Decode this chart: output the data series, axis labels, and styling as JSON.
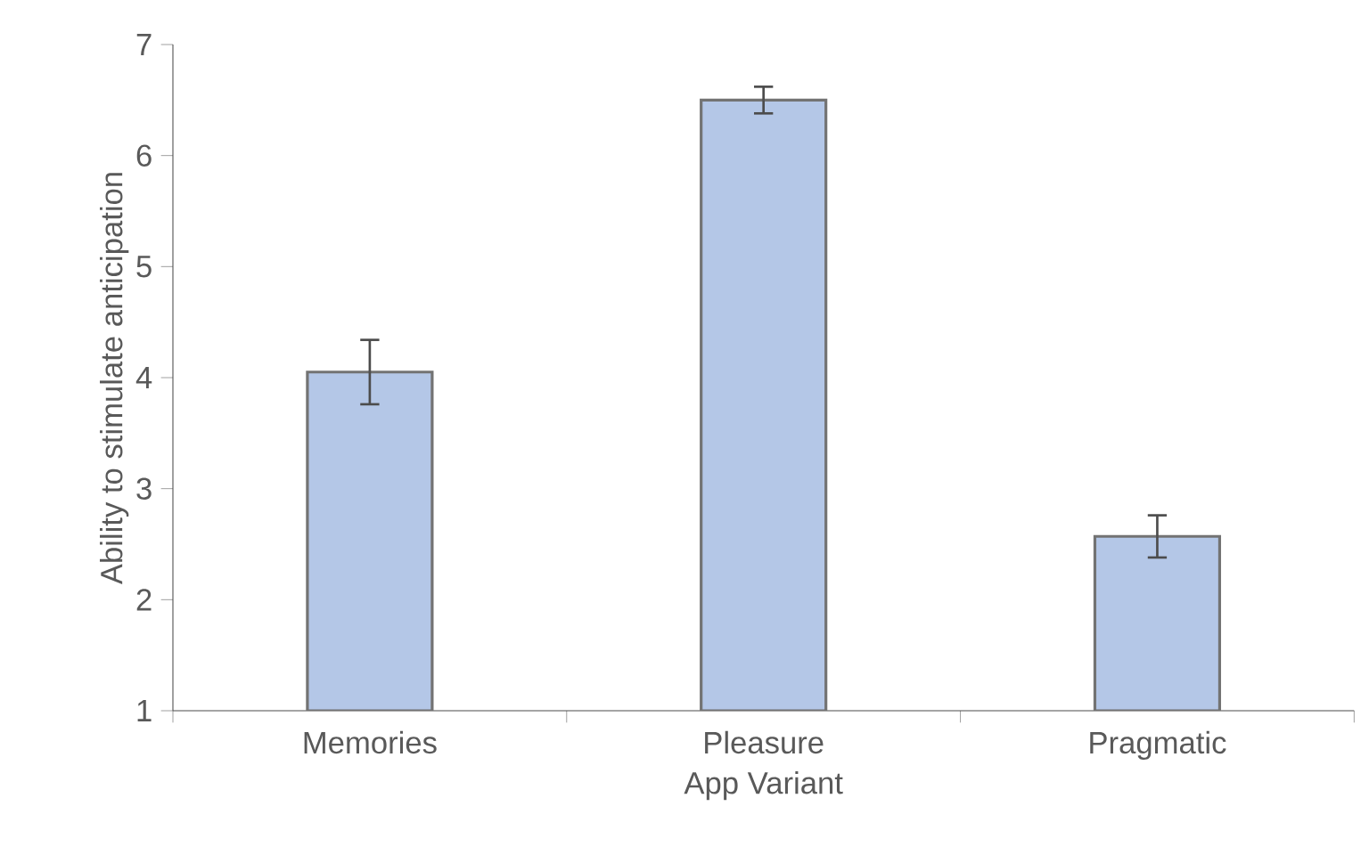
{
  "chart_data": {
    "type": "bar",
    "xlabel": "App Variant",
    "ylabel": "Ability to stimulate anticipation",
    "categories": [
      "Memories",
      "Pleasure",
      "Pragmatic"
    ],
    "values": [
      4.05,
      6.5,
      2.57
    ],
    "errors": [
      0.29,
      0.12,
      0.19
    ],
    "color": "#b4c7e7",
    "ylim": [
      1,
      7
    ],
    "yticks": [
      1,
      2,
      3,
      4,
      5,
      6,
      7
    ],
    "grid": false
  }
}
